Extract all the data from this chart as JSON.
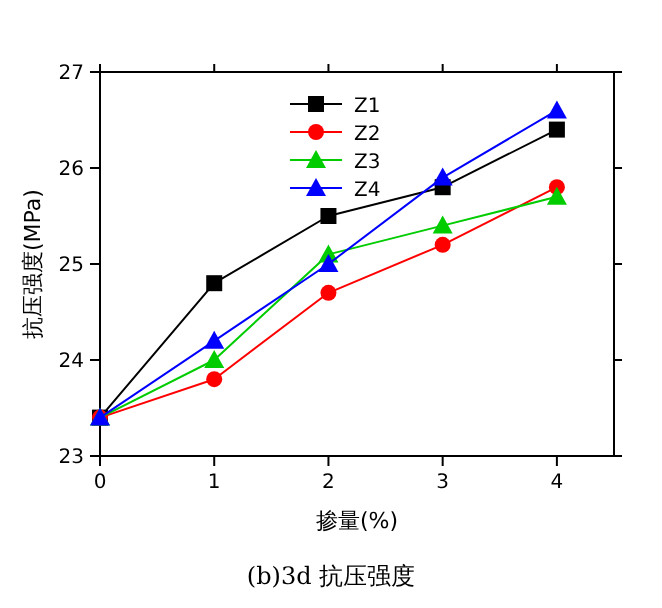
{
  "chart_data": {
    "type": "line",
    "title": "(b)3d 抗压强度",
    "xlabel": "掺量(%)",
    "ylabel": "抗压强度(MPa)",
    "x": [
      0,
      1,
      2,
      3,
      4
    ],
    "series": [
      {
        "name": "Z1",
        "color": "#000000",
        "marker": "square",
        "values": [
          23.4,
          24.8,
          25.5,
          25.8,
          26.4
        ]
      },
      {
        "name": "Z2",
        "color": "#ff0000",
        "marker": "circle",
        "values": [
          23.4,
          23.8,
          24.7,
          25.2,
          25.8
        ]
      },
      {
        "name": "Z3",
        "color": "#00cc00",
        "marker": "triangle",
        "values": [
          23.4,
          24.0,
          25.1,
          25.4,
          25.7
        ]
      },
      {
        "name": "Z4",
        "color": "#0000ff",
        "marker": "triangle",
        "values": [
          23.4,
          24.2,
          25.0,
          25.9,
          26.6
        ]
      }
    ],
    "xlim": [
      0,
      4.5
    ],
    "xticks": [
      0,
      1,
      2,
      3,
      4
    ],
    "ylim": [
      23,
      27
    ],
    "yticks": [
      23,
      24,
      25,
      26,
      27
    ],
    "legend": "top",
    "grid": false
  }
}
